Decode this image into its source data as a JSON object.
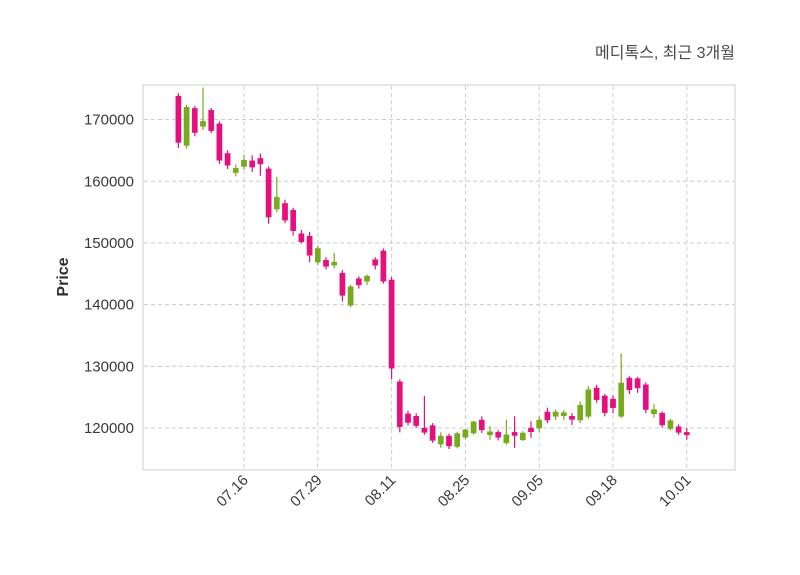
{
  "chart_data": {
    "type": "candlestick",
    "title": "메디톡스, 최근 3개월",
    "ylabel": "Price",
    "xlabel": "",
    "legend": "none",
    "grid": true,
    "grid_style": "dashed",
    "grid_color": "#cccccc",
    "border_color": "#cfcfcf",
    "background": "#ffffff",
    "up_color": "#77aa1c",
    "down_color": "#e5107d",
    "tick_color": "#3a3a3a",
    "ylim": [
      113200,
      175600
    ],
    "y_ticks": [
      120000,
      130000,
      140000,
      150000,
      160000,
      170000
    ],
    "x_tick_labels": [
      "07.16",
      "07.29",
      "08.11",
      "08.25",
      "09.05",
      "09.18",
      "10.01"
    ],
    "x_tick_candle_indices": [
      8,
      17,
      26,
      35,
      44,
      53,
      62
    ],
    "candles_ohlc": [
      [
        173800,
        174300,
        165400,
        166300
      ],
      [
        165800,
        172400,
        165300,
        172000
      ],
      [
        171800,
        172200,
        167300,
        167900
      ],
      [
        168900,
        175200,
        168300,
        169700
      ],
      [
        171500,
        171900,
        167800,
        168200
      ],
      [
        169300,
        169700,
        162800,
        163400
      ],
      [
        164500,
        165000,
        162000,
        162600
      ],
      [
        161400,
        162700,
        160800,
        162100
      ],
      [
        162400,
        164300,
        161900,
        163400
      ],
      [
        163300,
        164200,
        161500,
        162300
      ],
      [
        163700,
        164500,
        160900,
        162800
      ],
      [
        162000,
        162400,
        153100,
        154200
      ],
      [
        155500,
        160700,
        155000,
        157400
      ],
      [
        156400,
        157000,
        153200,
        153700
      ],
      [
        155300,
        155700,
        151200,
        152000
      ],
      [
        151500,
        152100,
        149900,
        150200
      ],
      [
        151100,
        151800,
        146900,
        148000
      ],
      [
        146900,
        149600,
        146400,
        149100
      ],
      [
        147200,
        147700,
        145700,
        146200
      ],
      [
        146400,
        148400,
        145900,
        146900
      ],
      [
        145100,
        145600,
        140500,
        141500
      ],
      [
        139900,
        143200,
        139600,
        142900
      ],
      [
        144200,
        144600,
        142600,
        143200
      ],
      [
        143800,
        144900,
        143200,
        144600
      ],
      [
        147300,
        147700,
        145700,
        146400
      ],
      [
        148700,
        149100,
        143400,
        143800
      ],
      [
        144000,
        144500,
        127900,
        129700
      ],
      [
        127500,
        127900,
        119300,
        120200
      ],
      [
        122300,
        122800,
        120400,
        120900
      ],
      [
        121900,
        122400,
        120000,
        120400
      ],
      [
        120000,
        125200,
        118900,
        119300
      ],
      [
        120400,
        120800,
        117600,
        118000
      ],
      [
        117400,
        119300,
        116800,
        118700
      ],
      [
        118700,
        119100,
        116600,
        117100
      ],
      [
        117000,
        119400,
        116700,
        119100
      ],
      [
        118500,
        119900,
        118200,
        119700
      ],
      [
        119200,
        121200,
        118900,
        121000
      ],
      [
        121300,
        121900,
        119200,
        119700
      ],
      [
        118900,
        120300,
        118100,
        119400
      ],
      [
        119300,
        119700,
        118000,
        118500
      ],
      [
        117600,
        121300,
        117300,
        118900
      ],
      [
        119300,
        121900,
        116800,
        118800
      ],
      [
        118100,
        119500,
        117900,
        119200
      ],
      [
        120000,
        121100,
        118400,
        119400
      ],
      [
        120000,
        121900,
        119300,
        121300
      ],
      [
        122600,
        123300,
        120800,
        121300
      ],
      [
        121900,
        123000,
        121300,
        122600
      ],
      [
        122000,
        122900,
        121300,
        122500
      ],
      [
        121900,
        122400,
        120500,
        121400
      ],
      [
        121300,
        124300,
        120800,
        123700
      ],
      [
        121900,
        126800,
        121500,
        126200
      ],
      [
        126500,
        127000,
        124100,
        124600
      ],
      [
        125200,
        125500,
        121900,
        122500
      ],
      [
        124700,
        125300,
        122400,
        123300
      ],
      [
        121900,
        132100,
        121600,
        127300
      ],
      [
        128100,
        128400,
        125500,
        126200
      ],
      [
        128000,
        128300,
        125700,
        126500
      ],
      [
        127000,
        127400,
        122400,
        123000
      ],
      [
        122300,
        123900,
        121700,
        123000
      ],
      [
        122400,
        122700,
        120100,
        120500
      ],
      [
        119900,
        121500,
        119600,
        121200
      ],
      [
        120200,
        120600,
        118900,
        119300
      ],
      [
        119300,
        120000,
        118100,
        118900
      ]
    ]
  }
}
